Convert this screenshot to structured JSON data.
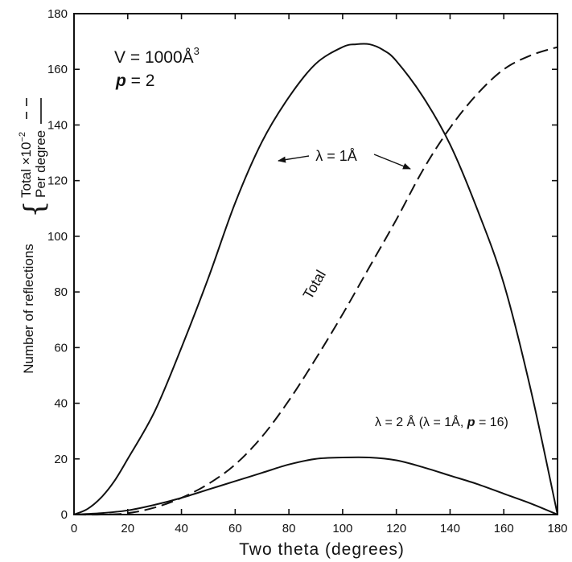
{
  "chart_data": {
    "type": "line",
    "xlabel": "Two theta (degrees)",
    "ylabel_main": "Number of reflections",
    "ylabel_total": "Total ×10",
    "ylabel_total_exp": "−2",
    "ylabel_per": "Per degree",
    "xlim": [
      0,
      180
    ],
    "ylim": [
      0,
      180
    ],
    "x_ticks": [
      0,
      20,
      40,
      60,
      80,
      100,
      120,
      140,
      160,
      180
    ],
    "y_ticks": [
      0,
      20,
      40,
      60,
      80,
      100,
      120,
      140,
      160,
      180
    ],
    "grid": false,
    "annotations": {
      "volume_prefix": "V = 1000Å",
      "volume_exp": "3",
      "p_symbol": "p",
      "p_value": " = 2",
      "lambda1": "λ = 1Å",
      "lambda2_prefix": "λ = 2 Å  (λ = 1Å, ",
      "lambda2_p": "p",
      "lambda2_suffix": " = 16)",
      "total": "Total"
    },
    "series": [
      {
        "style": "solid",
        "x": [
          0,
          5,
          10,
          15,
          20,
          30,
          40,
          50,
          60,
          70,
          80,
          90,
          100,
          105,
          110,
          115,
          120,
          130,
          140,
          150,
          160,
          170,
          180
        ],
        "y": [
          0,
          2,
          6,
          12,
          20,
          37,
          60,
          85,
          112,
          134,
          150,
          162,
          168,
          169,
          169,
          167,
          163,
          150,
          133,
          110,
          83,
          45,
          0
        ]
      },
      {
        "style": "dashed",
        "x": [
          0,
          10,
          20,
          30,
          40,
          50,
          60,
          70,
          80,
          90,
          100,
          110,
          120,
          130,
          140,
          150,
          160,
          170,
          180
        ],
        "y": [
          0,
          0,
          0.5,
          2.5,
          6,
          11,
          18,
          28,
          41,
          56,
          72,
          89,
          106,
          124,
          139,
          151,
          160,
          165,
          168
        ]
      },
      {
        "style": "solid",
        "x": [
          0,
          10,
          20,
          30,
          40,
          50,
          60,
          70,
          80,
          90,
          100,
          110,
          120,
          130,
          140,
          150,
          160,
          170,
          180
        ],
        "y": [
          0,
          0.5,
          1.5,
          3.5,
          6,
          9,
          12,
          15,
          18,
          20,
          20.5,
          20.5,
          19.5,
          17,
          14,
          11,
          7.5,
          4,
          0
        ]
      }
    ]
  }
}
